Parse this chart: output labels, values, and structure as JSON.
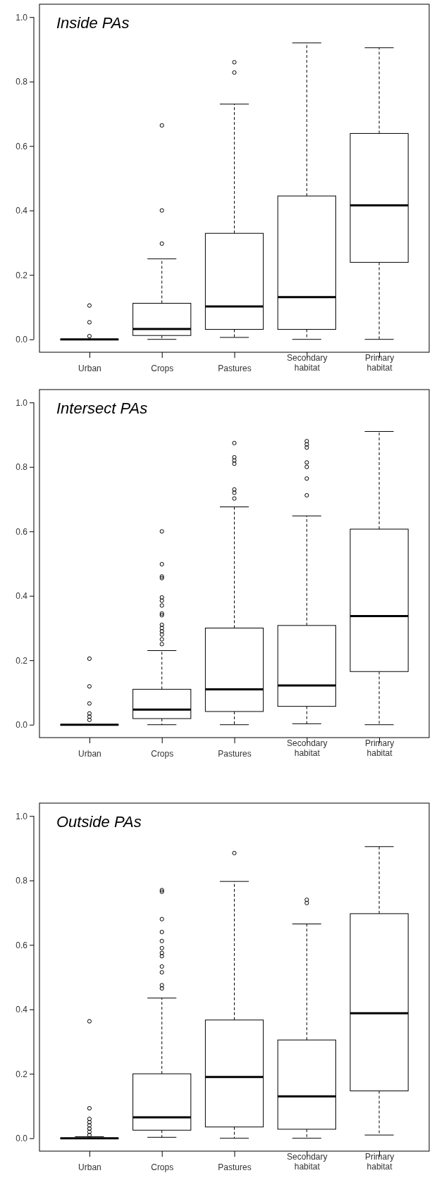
{
  "chart_data": [
    {
      "type": "box",
      "title": "Inside PAs",
      "categories": [
        "Urban",
        "Crops",
        "Pastures",
        "Secondary habitat",
        "Primary habitat"
      ],
      "boxes": [
        {
          "low": 0,
          "q1": 0,
          "median": 0,
          "q3": 0,
          "high": 0,
          "outliers": [
            0.105,
            0.053,
            0.01
          ]
        },
        {
          "low": 0,
          "q1": 0.012,
          "median": 0.032,
          "q3": 0.112,
          "high": 0.25,
          "outliers": [
            0.664,
            0.4,
            0.297
          ]
        },
        {
          "low": 0.006,
          "q1": 0.031,
          "median": 0.102,
          "q3": 0.329,
          "high": 0.73,
          "outliers": [
            0.86,
            0.828
          ]
        },
        {
          "low": 0,
          "q1": 0.031,
          "median": 0.131,
          "q3": 0.445,
          "high": 0.92
        },
        {
          "low": 0,
          "q1": 0.239,
          "median": 0.416,
          "q3": 0.639,
          "high": 0.905
        }
      ],
      "ylim": [
        -0.04,
        1.04
      ],
      "yticks": [
        {
          "value": 0,
          "label": "0.0"
        },
        {
          "value": 0.2,
          "label": "0.2"
        },
        {
          "value": 0.4,
          "label": "0.4"
        },
        {
          "value": 0.6,
          "label": "0.6"
        },
        {
          "value": 0.8,
          "label": "0.8"
        },
        {
          "value": 1,
          "label": "1.0"
        }
      ]
    },
    {
      "type": "box",
      "title": "Intersect PAs",
      "categories": [
        "Urban",
        "Crops",
        "Pastures",
        "Secondary habitat",
        "Primary habitat"
      ],
      "boxes": [
        {
          "low": 0,
          "q1": 0,
          "median": 0,
          "q3": 0,
          "high": 0,
          "outliers": [
            0.205,
            0.119,
            0.066,
            0.035,
            0.025,
            0.015
          ]
        },
        {
          "low": 0,
          "q1": 0.019,
          "median": 0.047,
          "q3": 0.11,
          "high": 0.23,
          "outliers": [
            0.6,
            0.498,
            0.46,
            0.455,
            0.395,
            0.385,
            0.37,
            0.345,
            0.34,
            0.31,
            0.3,
            0.29,
            0.28,
            0.265,
            0.25
          ]
        },
        {
          "low": 0,
          "q1": 0.041,
          "median": 0.11,
          "q3": 0.3,
          "high": 0.676,
          "outliers": [
            0.874,
            0.83,
            0.82,
            0.81,
            0.73,
            0.72,
            0.702
          ]
        },
        {
          "low": 0.003,
          "q1": 0.057,
          "median": 0.122,
          "q3": 0.308,
          "high": 0.648,
          "outliers": [
            0.88,
            0.87,
            0.86,
            0.814,
            0.8,
            0.764,
            0.712
          ]
        },
        {
          "low": 0,
          "q1": 0.165,
          "median": 0.337,
          "q3": 0.607,
          "high": 0.91
        }
      ],
      "ylim": [
        -0.04,
        1.04
      ],
      "yticks": [
        {
          "value": 0,
          "label": "0.0"
        },
        {
          "value": 0.2,
          "label": "0.2"
        },
        {
          "value": 0.4,
          "label": "0.4"
        },
        {
          "value": 0.6,
          "label": "0.6"
        },
        {
          "value": 0.8,
          "label": "0.8"
        },
        {
          "value": 1,
          "label": "1.0"
        }
      ]
    },
    {
      "type": "box",
      "title": "Outside PAs",
      "categories": [
        "Urban",
        "Crops",
        "Pastures",
        "Secondary habitat",
        "Primary habitat"
      ],
      "boxes": [
        {
          "low": 0,
          "q1": 0,
          "median": 0,
          "q3": 0,
          "high": 0.005,
          "outliers": [
            0.363,
            0.093,
            0.06,
            0.05,
            0.04,
            0.03,
            0.02,
            0.01
          ]
        },
        {
          "low": 0.003,
          "q1": 0.025,
          "median": 0.065,
          "q3": 0.2,
          "high": 0.435,
          "outliers": [
            0.77,
            0.765,
            0.68,
            0.64,
            0.612,
            0.59,
            0.575,
            0.565,
            0.533,
            0.515,
            0.475,
            0.465
          ]
        },
        {
          "low": 0,
          "q1": 0.035,
          "median": 0.19,
          "q3": 0.367,
          "high": 0.797,
          "outliers": [
            0.885
          ]
        },
        {
          "low": 0,
          "q1": 0.028,
          "median": 0.13,
          "q3": 0.305,
          "high": 0.665,
          "outliers": [
            0.74,
            0.73
          ]
        },
        {
          "low": 0.01,
          "q1": 0.147,
          "median": 0.388,
          "q3": 0.697,
          "high": 0.905
        }
      ],
      "ylim": [
        -0.04,
        1.04
      ],
      "yticks": [
        {
          "value": 0,
          "label": "0.0"
        },
        {
          "value": 0.2,
          "label": "0.2"
        },
        {
          "value": 0.4,
          "label": "0.4"
        },
        {
          "value": 0.6,
          "label": "0.6"
        },
        {
          "value": 0.8,
          "label": "0.8"
        },
        {
          "value": 1,
          "label": "1.0"
        }
      ]
    }
  ]
}
